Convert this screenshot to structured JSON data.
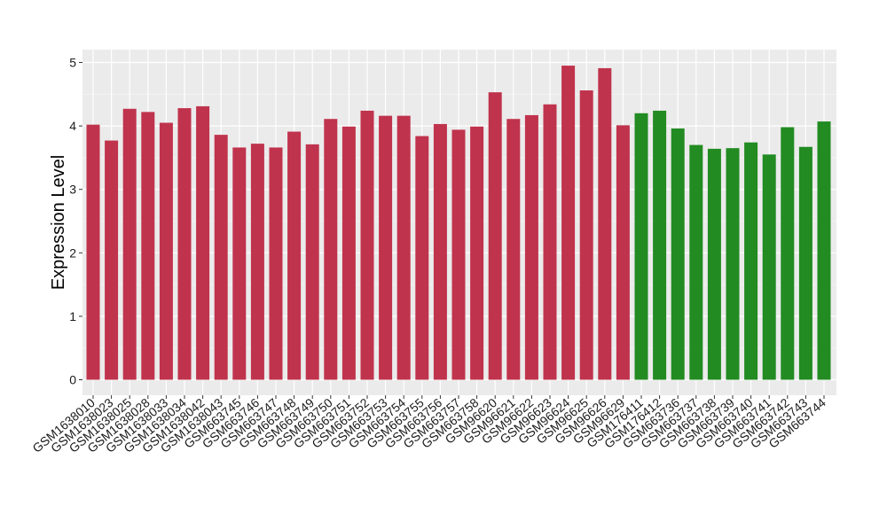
{
  "chart_data": {
    "type": "bar",
    "title": "",
    "xlabel": "",
    "ylabel": "Expression Level",
    "ylim": [
      0,
      5
    ],
    "yticks": [
      0,
      1,
      2,
      3,
      4,
      5
    ],
    "grid": true,
    "legend": "none",
    "colors": {
      "group1": "#c0334d",
      "group2": "#228b22",
      "panel": "#ebebeb",
      "gridline": "#ffffff"
    },
    "categories": [
      "GSM1638010",
      "GSM1638023",
      "GSM1638025",
      "GSM1638028",
      "GSM1638033",
      "GSM1638034",
      "GSM1638042",
      "GSM1638043",
      "GSM663745",
      "GSM663746",
      "GSM663747",
      "GSM663748",
      "GSM663749",
      "GSM663750",
      "GSM663751",
      "GSM663752",
      "GSM663753",
      "GSM663754",
      "GSM663755",
      "GSM663756",
      "GSM663757",
      "GSM663758",
      "GSM96620",
      "GSM96621",
      "GSM96622",
      "GSM96623",
      "GSM96624",
      "GSM96625",
      "GSM96626",
      "GSM96629",
      "GSM176411",
      "GSM176412",
      "GSM663736",
      "GSM663737",
      "GSM663738",
      "GSM663739",
      "GSM663740",
      "GSM663741",
      "GSM663742",
      "GSM663743",
      "GSM663744"
    ],
    "values": [
      4.02,
      3.77,
      4.27,
      4.22,
      4.05,
      4.28,
      4.31,
      3.86,
      3.66,
      3.72,
      3.66,
      3.91,
      3.71,
      4.11,
      3.99,
      4.24,
      4.16,
      4.16,
      3.84,
      4.03,
      3.94,
      3.99,
      4.53,
      4.11,
      4.17,
      4.34,
      4.95,
      4.56,
      4.91,
      4.01,
      4.2,
      4.24,
      3.96,
      3.7,
      3.64,
      3.65,
      3.74,
      3.55,
      3.98,
      3.67,
      4.07
    ],
    "groups": [
      1,
      1,
      1,
      1,
      1,
      1,
      1,
      1,
      1,
      1,
      1,
      1,
      1,
      1,
      1,
      1,
      1,
      1,
      1,
      1,
      1,
      1,
      1,
      1,
      1,
      1,
      1,
      1,
      1,
      1,
      2,
      2,
      2,
      2,
      2,
      2,
      2,
      2,
      2,
      2,
      2
    ]
  }
}
